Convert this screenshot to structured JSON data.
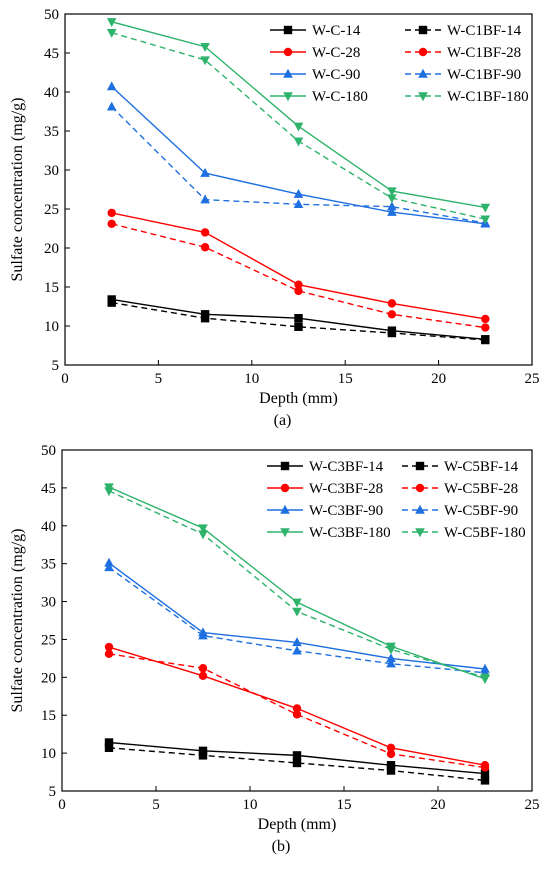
{
  "chart_data": [
    {
      "type": "line",
      "panel_label": "(a)",
      "xlabel": "Depth (mm)",
      "ylabel": "Sulfate concentration (mg/g)",
      "xlim": [
        0,
        25
      ],
      "ylim": [
        5,
        50
      ],
      "xticks": [
        0,
        5,
        10,
        15,
        20,
        25
      ],
      "yticks": [
        5,
        10,
        15,
        20,
        25,
        30,
        35,
        40,
        45,
        50
      ],
      "grid": false,
      "legend_position": "top-right",
      "x": [
        2.5,
        7.5,
        12.5,
        17.5,
        22.5
      ],
      "series": [
        {
          "name": "W-C-14",
          "color": "#000000",
          "marker": "square",
          "dash": false,
          "values": [
            13.4,
            11.5,
            11.0,
            9.4,
            8.3
          ]
        },
        {
          "name": "W-C1BF-14",
          "color": "#000000",
          "marker": "square",
          "dash": true,
          "values": [
            13.0,
            11.0,
            9.9,
            9.1,
            8.2
          ]
        },
        {
          "name": "W-C-28",
          "color": "#ff0000",
          "marker": "circle",
          "dash": false,
          "values": [
            24.5,
            22.0,
            15.3,
            12.9,
            10.9
          ]
        },
        {
          "name": "W-C1BF-28",
          "color": "#ff0000",
          "marker": "circle",
          "dash": true,
          "values": [
            23.1,
            20.1,
            14.5,
            11.5,
            9.8
          ]
        },
        {
          "name": "W-C-90",
          "color": "#1e6fe0",
          "marker": "triangle-up",
          "dash": false,
          "values": [
            40.7,
            29.6,
            26.9,
            24.6,
            23.1
          ]
        },
        {
          "name": "W-C1BF-90",
          "color": "#1e6fe0",
          "marker": "triangle-up",
          "dash": true,
          "values": [
            38.1,
            26.2,
            25.6,
            25.3,
            23.2
          ]
        },
        {
          "name": "W-C-180",
          "color": "#2db36b",
          "marker": "triangle-down",
          "dash": false,
          "values": [
            49.0,
            45.8,
            35.6,
            27.3,
            25.2
          ]
        },
        {
          "name": "W-C1BF-180",
          "color": "#2db36b",
          "marker": "triangle-down",
          "dash": true,
          "values": [
            47.6,
            44.1,
            33.7,
            26.4,
            23.7
          ]
        }
      ]
    },
    {
      "type": "line",
      "panel_label": "(b)",
      "xlabel": "Depth (mm)",
      "ylabel": "Sulfate concentration (mg/g)",
      "xlim": [
        0,
        25
      ],
      "ylim": [
        5,
        50
      ],
      "xticks": [
        0,
        5,
        10,
        15,
        20,
        25
      ],
      "yticks": [
        5,
        10,
        15,
        20,
        25,
        30,
        35,
        40,
        45,
        50
      ],
      "grid": false,
      "legend_position": "top-right",
      "x": [
        2.5,
        7.5,
        12.5,
        17.5,
        22.5
      ],
      "series": [
        {
          "name": "W-C3BF-14",
          "color": "#000000",
          "marker": "square",
          "dash": false,
          "values": [
            11.4,
            10.3,
            9.7,
            8.4,
            7.3
          ]
        },
        {
          "name": "W-C5BF-14",
          "color": "#000000",
          "marker": "square",
          "dash": true,
          "values": [
            10.7,
            9.7,
            8.7,
            7.7,
            6.4
          ]
        },
        {
          "name": "W-C3BF-28",
          "color": "#ff0000",
          "marker": "circle",
          "dash": false,
          "values": [
            24.0,
            20.2,
            15.9,
            10.7,
            8.4
          ]
        },
        {
          "name": "W-C5BF-28",
          "color": "#ff0000",
          "marker": "circle",
          "dash": true,
          "values": [
            23.1,
            21.2,
            15.1,
            9.9,
            8.1
          ]
        },
        {
          "name": "W-C3BF-90",
          "color": "#1e6fe0",
          "marker": "triangle-up",
          "dash": false,
          "values": [
            35.1,
            25.9,
            24.6,
            22.5,
            21.1
          ]
        },
        {
          "name": "W-C5BF-90",
          "color": "#1e6fe0",
          "marker": "triangle-up",
          "dash": true,
          "values": [
            34.5,
            25.5,
            23.5,
            21.8,
            20.6
          ]
        },
        {
          "name": "W-C3BF-180",
          "color": "#2db36b",
          "marker": "triangle-down",
          "dash": false,
          "values": [
            45.1,
            39.7,
            29.9,
            24.1,
            19.8
          ]
        },
        {
          "name": "W-C5BF-180",
          "color": "#2db36b",
          "marker": "triangle-down",
          "dash": true,
          "values": [
            44.6,
            38.9,
            28.7,
            23.7,
            20.0
          ]
        }
      ]
    }
  ]
}
